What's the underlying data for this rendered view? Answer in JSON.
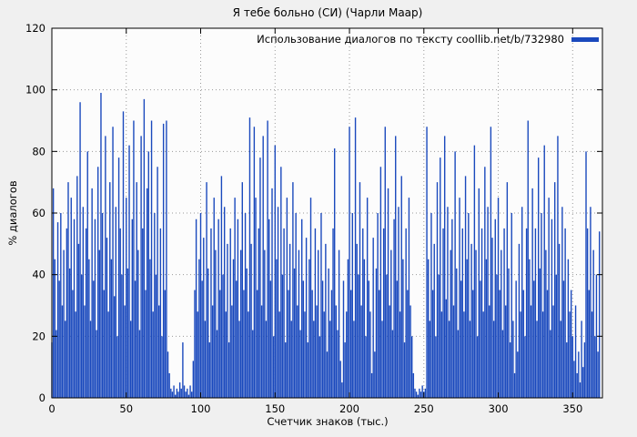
{
  "title": "Я тебе больно (СИ) (Чарли Маар)",
  "legend": {
    "label": "Использование диалогов по тексту coollib.net/b/732980"
  },
  "colors": {
    "bar": "#1a49bd",
    "background": "#f0f0f0",
    "plot_background": "#fcfcfc",
    "grid": "#9a9a9a",
    "axis": "#000000"
  },
  "chart_data": {
    "type": "bar",
    "title": "Я тебе больно (СИ) (Чарли Маар)",
    "xlabel": "Счетчик знаков (тыс.)",
    "ylabel": "% диалогов",
    "legend_label": "Использование диалогов по тексту coollib.net/b/732980",
    "legend_position": "top-right",
    "grid": true,
    "xlim": [
      0,
      370
    ],
    "ylim": [
      0,
      120
    ],
    "xticks": [
      0,
      50,
      100,
      150,
      200,
      250,
      300,
      350
    ],
    "yticks": [
      0,
      20,
      40,
      60,
      80,
      100,
      120
    ],
    "bar_color": "#1a49bd",
    "x_start": 0,
    "x_step": 1,
    "values": [
      18,
      68,
      45,
      22,
      57,
      38,
      60,
      30,
      48,
      25,
      55,
      70,
      42,
      65,
      35,
      58,
      28,
      72,
      50,
      96,
      40,
      62,
      30,
      55,
      80,
      45,
      25,
      68,
      38,
      58,
      22,
      75,
      48,
      99,
      60,
      35,
      85,
      52,
      28,
      70,
      45,
      88,
      33,
      62,
      20,
      78,
      55,
      40,
      93,
      30,
      65,
      42,
      82,
      25,
      58,
      90,
      38,
      70,
      48,
      22,
      85,
      55,
      97,
      35,
      68,
      80,
      45,
      90,
      28,
      60,
      40,
      75,
      30,
      55,
      20,
      89,
      35,
      90,
      15,
      8,
      3,
      2,
      4,
      1,
      3,
      2,
      5,
      3,
      18,
      4,
      2,
      3,
      1,
      4,
      2,
      12,
      35,
      58,
      28,
      45,
      60,
      38,
      52,
      25,
      70,
      42,
      18,
      55,
      30,
      65,
      48,
      22,
      58,
      35,
      72,
      40,
      62,
      28,
      50,
      18,
      55,
      30,
      45,
      65,
      38,
      58,
      25,
      48,
      70,
      35,
      60,
      42,
      28,
      91,
      50,
      22,
      88,
      65,
      35,
      55,
      78,
      30,
      85,
      48,
      25,
      90,
      58,
      38,
      68,
      20,
      82,
      45,
      62,
      28,
      75,
      40,
      55,
      18,
      65,
      35,
      50,
      25,
      70,
      42,
      60,
      30,
      48,
      22,
      58,
      38,
      28,
      52,
      18,
      45,
      65,
      35,
      25,
      55,
      30,
      48,
      20,
      60,
      38,
      28,
      50,
      15,
      42,
      25,
      35,
      55,
      81,
      30,
      22,
      48,
      12,
      5,
      38,
      18,
      28,
      45,
      88,
      35,
      60,
      25,
      91,
      50,
      40,
      70,
      30,
      55,
      45,
      20,
      65,
      38,
      28,
      8,
      52,
      15,
      42,
      60,
      35,
      75,
      25,
      55,
      88,
      40,
      68,
      30,
      48,
      22,
      58,
      85,
      38,
      62,
      28,
      72,
      45,
      18,
      55,
      35,
      65,
      30,
      20,
      8,
      3,
      2,
      1,
      3,
      2,
      4,
      2,
      3,
      88,
      45,
      25,
      60,
      35,
      50,
      20,
      70,
      40,
      78,
      28,
      55,
      85,
      32,
      62,
      25,
      48,
      58,
      30,
      80,
      42,
      22,
      65,
      38,
      55,
      28,
      72,
      45,
      60,
      25,
      50,
      35,
      82,
      48,
      20,
      68,
      38,
      55,
      28,
      75,
      45,
      62,
      30,
      88,
      52,
      25,
      58,
      40,
      65,
      35,
      48,
      22,
      55,
      30,
      70,
      42,
      18,
      60,
      25,
      8,
      38,
      15,
      50,
      28,
      62,
      35,
      20,
      55,
      90,
      45,
      30,
      68,
      38,
      55,
      25,
      78,
      42,
      60,
      28,
      82,
      48,
      35,
      65,
      22,
      58,
      30,
      70,
      40,
      85,
      50,
      25,
      62,
      38,
      55,
      18,
      45,
      28,
      35,
      20,
      12,
      30,
      8,
      15,
      5,
      25,
      10,
      18,
      80,
      55,
      35,
      62,
      28,
      48,
      20,
      40,
      15,
      54
    ]
  }
}
